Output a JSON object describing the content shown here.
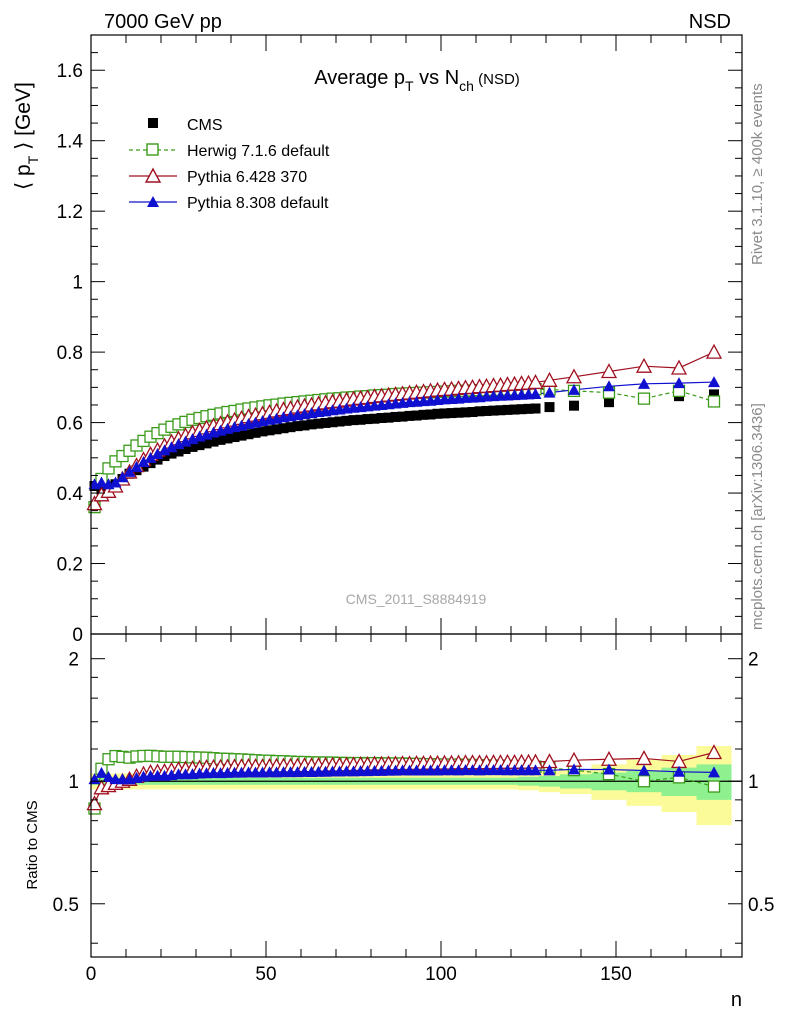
{
  "header": {
    "energy_label": "7000 GeV pp",
    "process_label": "NSD"
  },
  "side": {
    "rivet_label": "Rivet 3.1.10, ≥ 400k events",
    "source_label": "mcplots.cern.ch [arXiv:1306.3436]"
  },
  "colors": {
    "cms": "#000000",
    "herwig": "#3a9a1a",
    "pythia6": "#a01020",
    "pythia8": "#1010d0",
    "band_inner": "#8ef08e",
    "band_outer": "#fbfb9a"
  },
  "chart_data": [
    {
      "type": "scatter",
      "title_parts": {
        "main": "Average p",
        "sub_t": "T",
        "mid": " vs N",
        "sub_ch": "ch",
        "tail": " (NSD)"
      },
      "ylabel_parts": {
        "open": "⟨ p",
        "sub": "T",
        "close": " ⟩ [GeV]"
      },
      "watermark": "CMS_2011_S8884919",
      "xlim": [
        0,
        186
      ],
      "ylim": [
        0,
        1.7
      ],
      "yticks": [
        "0",
        "0.2",
        "0.4",
        "0.6",
        "0.8",
        "1",
        "1.2",
        "1.4",
        "1.6"
      ],
      "ytick_values": [
        0,
        0.2,
        0.4,
        0.6,
        0.8,
        1.0,
        1.2,
        1.4,
        1.6
      ],
      "legend": {
        "placement": "top-left",
        "entries": [
          "CMS",
          "Herwig 7.1.6 default",
          "Pythia 6.428 370",
          "Pythia 8.308 default"
        ]
      },
      "series": [
        {
          "name": "CMS",
          "x": [
            1,
            3,
            5,
            7,
            9,
            11,
            13,
            15,
            17,
            19,
            21,
            23,
            25,
            27,
            29,
            31,
            33,
            35,
            37,
            39,
            41,
            43,
            45,
            47,
            49,
            51,
            53,
            55,
            57,
            59,
            61,
            63,
            65,
            67,
            69,
            71,
            73,
            75,
            77,
            79,
            81,
            83,
            85,
            87,
            89,
            91,
            93,
            95,
            97,
            99,
            101,
            103,
            105,
            107,
            109,
            111,
            113,
            115,
            117,
            119,
            121,
            123,
            125,
            127,
            131,
            138,
            148,
            158,
            168,
            178
          ],
          "y": [
            0.42,
            0.41,
            0.415,
            0.425,
            0.44,
            0.455,
            0.465,
            0.475,
            0.485,
            0.495,
            0.505,
            0.512,
            0.518,
            0.525,
            0.531,
            0.536,
            0.541,
            0.546,
            0.551,
            0.555,
            0.559,
            0.563,
            0.567,
            0.571,
            0.575,
            0.578,
            0.581,
            0.584,
            0.587,
            0.59,
            0.592,
            0.595,
            0.597,
            0.599,
            0.601,
            0.603,
            0.605,
            0.607,
            0.608,
            0.61,
            0.611,
            0.613,
            0.614,
            0.616,
            0.617,
            0.619,
            0.62,
            0.622,
            0.623,
            0.625,
            0.626,
            0.627,
            0.628,
            0.629,
            0.63,
            0.632,
            0.633,
            0.634,
            0.635,
            0.636,
            0.637,
            0.638,
            0.639,
            0.64,
            0.644,
            0.648,
            0.658,
            0.668,
            0.675,
            0.68
          ]
        },
        {
          "name": "Herwig 7.1.6 default",
          "x": [
            1,
            3,
            5,
            7,
            9,
            11,
            13,
            15,
            17,
            19,
            21,
            23,
            25,
            27,
            29,
            31,
            33,
            35,
            37,
            39,
            41,
            43,
            45,
            47,
            49,
            51,
            53,
            55,
            57,
            59,
            61,
            63,
            65,
            67,
            69,
            71,
            73,
            75,
            77,
            79,
            81,
            83,
            85,
            87,
            89,
            91,
            93,
            95,
            97,
            99,
            101,
            103,
            105,
            107,
            109,
            111,
            113,
            115,
            117,
            119,
            121,
            123,
            125,
            127,
            131,
            138,
            148,
            158,
            168,
            178
          ],
          "y": [
            0.36,
            0.44,
            0.47,
            0.49,
            0.505,
            0.52,
            0.535,
            0.548,
            0.56,
            0.57,
            0.58,
            0.588,
            0.595,
            0.602,
            0.608,
            0.613,
            0.618,
            0.622,
            0.626,
            0.63,
            0.633,
            0.637,
            0.64,
            0.643,
            0.646,
            0.649,
            0.651,
            0.654,
            0.656,
            0.658,
            0.66,
            0.662,
            0.664,
            0.666,
            0.668,
            0.669,
            0.671,
            0.672,
            0.674,
            0.675,
            0.677,
            0.678,
            0.679,
            0.681,
            0.682,
            0.683,
            0.684,
            0.685,
            0.686,
            0.687,
            0.688,
            0.689,
            0.69,
            0.69,
            0.691,
            0.692,
            0.692,
            0.693,
            0.693,
            0.694,
            0.694,
            0.694,
            0.695,
            0.695,
            0.694,
            0.69,
            0.685,
            0.668,
            0.69,
            0.66
          ]
        },
        {
          "name": "Pythia 6.428 370",
          "x": [
            1,
            3,
            5,
            7,
            9,
            11,
            13,
            15,
            17,
            19,
            21,
            23,
            25,
            27,
            29,
            31,
            33,
            35,
            37,
            39,
            41,
            43,
            45,
            47,
            49,
            51,
            53,
            55,
            57,
            59,
            61,
            63,
            65,
            67,
            69,
            71,
            73,
            75,
            77,
            79,
            81,
            83,
            85,
            87,
            89,
            91,
            93,
            95,
            97,
            99,
            101,
            103,
            105,
            107,
            109,
            111,
            113,
            115,
            117,
            119,
            121,
            123,
            125,
            127,
            131,
            138,
            148,
            158,
            168,
            178
          ],
          "y": [
            0.37,
            0.395,
            0.405,
            0.42,
            0.44,
            0.46,
            0.478,
            0.495,
            0.51,
            0.522,
            0.534,
            0.545,
            0.554,
            0.563,
            0.571,
            0.578,
            0.585,
            0.591,
            0.597,
            0.602,
            0.607,
            0.612,
            0.617,
            0.621,
            0.625,
            0.629,
            0.633,
            0.637,
            0.64,
            0.644,
            0.647,
            0.65,
            0.653,
            0.656,
            0.659,
            0.661,
            0.664,
            0.667,
            0.669,
            0.671,
            0.674,
            0.676,
            0.678,
            0.68,
            0.682,
            0.684,
            0.686,
            0.688,
            0.69,
            0.692,
            0.694,
            0.695,
            0.697,
            0.699,
            0.7,
            0.702,
            0.703,
            0.705,
            0.706,
            0.708,
            0.709,
            0.711,
            0.712,
            0.714,
            0.72,
            0.73,
            0.745,
            0.76,
            0.755,
            0.8
          ]
        },
        {
          "name": "Pythia 8.308 default",
          "x": [
            1,
            3,
            5,
            7,
            9,
            11,
            13,
            15,
            17,
            19,
            21,
            23,
            25,
            27,
            29,
            31,
            33,
            35,
            37,
            39,
            41,
            43,
            45,
            47,
            49,
            51,
            53,
            55,
            57,
            59,
            61,
            63,
            65,
            67,
            69,
            71,
            73,
            75,
            77,
            79,
            81,
            83,
            85,
            87,
            89,
            91,
            93,
            95,
            97,
            99,
            101,
            103,
            105,
            107,
            109,
            111,
            113,
            115,
            117,
            119,
            121,
            123,
            125,
            127,
            131,
            138,
            148,
            158,
            168,
            178
          ],
          "y": [
            0.425,
            0.43,
            0.425,
            0.43,
            0.445,
            0.46,
            0.474,
            0.488,
            0.5,
            0.511,
            0.521,
            0.53,
            0.539,
            0.546,
            0.553,
            0.56,
            0.566,
            0.572,
            0.577,
            0.582,
            0.587,
            0.591,
            0.596,
            0.6,
            0.604,
            0.608,
            0.611,
            0.615,
            0.618,
            0.621,
            0.624,
            0.627,
            0.63,
            0.632,
            0.635,
            0.637,
            0.64,
            0.642,
            0.644,
            0.646,
            0.648,
            0.65,
            0.652,
            0.654,
            0.656,
            0.658,
            0.659,
            0.661,
            0.662,
            0.664,
            0.666,
            0.667,
            0.668,
            0.67,
            0.671,
            0.672,
            0.674,
            0.675,
            0.676,
            0.677,
            0.678,
            0.679,
            0.68,
            0.681,
            0.685,
            0.693,
            0.703,
            0.71,
            0.712,
            0.715
          ]
        }
      ]
    },
    {
      "type": "scatter",
      "ylabel": "Ratio to CMS",
      "xlabel": "n",
      "xlim": [
        0,
        186
      ],
      "ylim": [
        0.37,
        2.3
      ],
      "y_scale": "log",
      "xticks": [
        "0",
        "50",
        "100",
        "150"
      ],
      "xtick_values": [
        0,
        50,
        100,
        150
      ],
      "yticks": [
        "0.5",
        "1",
        "2"
      ],
      "ytick_values": [
        0.5,
        1,
        2
      ],
      "band": {
        "x_edges": [
          0,
          2,
          4,
          6,
          8,
          10,
          12,
          14,
          16,
          18,
          20,
          22,
          24,
          26,
          28,
          30,
          32,
          34,
          36,
          38,
          40,
          42,
          44,
          46,
          48,
          50,
          52,
          54,
          56,
          58,
          60,
          62,
          64,
          66,
          68,
          70,
          72,
          74,
          76,
          78,
          80,
          82,
          84,
          86,
          88,
          90,
          92,
          94,
          96,
          98,
          100,
          102,
          104,
          106,
          108,
          110,
          112,
          114,
          116,
          118,
          120,
          122,
          124,
          126,
          128,
          134,
          143,
          153,
          163,
          173,
          183
        ],
        "inner_half_width": [
          0.02,
          0.02,
          0.02,
          0.02,
          0.02,
          0.02,
          0.02,
          0.02,
          0.02,
          0.02,
          0.02,
          0.02,
          0.02,
          0.02,
          0.02,
          0.02,
          0.02,
          0.02,
          0.02,
          0.02,
          0.02,
          0.02,
          0.02,
          0.02,
          0.02,
          0.02,
          0.02,
          0.02,
          0.02,
          0.02,
          0.02,
          0.02,
          0.02,
          0.02,
          0.02,
          0.02,
          0.02,
          0.02,
          0.02,
          0.02,
          0.02,
          0.02,
          0.02,
          0.02,
          0.02,
          0.02,
          0.02,
          0.02,
          0.02,
          0.02,
          0.02,
          0.02,
          0.02,
          0.02,
          0.02,
          0.02,
          0.02,
          0.02,
          0.02,
          0.02,
          0.02,
          0.025,
          0.025,
          0.025,
          0.03,
          0.04,
          0.05,
          0.06,
          0.08,
          0.1
        ],
        "outer_half_width": [
          0.045,
          0.045,
          0.045,
          0.045,
          0.045,
          0.045,
          0.045,
          0.045,
          0.045,
          0.045,
          0.045,
          0.045,
          0.045,
          0.045,
          0.045,
          0.045,
          0.045,
          0.045,
          0.045,
          0.045,
          0.045,
          0.045,
          0.045,
          0.045,
          0.045,
          0.045,
          0.045,
          0.045,
          0.045,
          0.045,
          0.045,
          0.045,
          0.045,
          0.045,
          0.045,
          0.045,
          0.045,
          0.045,
          0.045,
          0.045,
          0.045,
          0.045,
          0.045,
          0.045,
          0.045,
          0.045,
          0.045,
          0.045,
          0.045,
          0.045,
          0.045,
          0.045,
          0.045,
          0.045,
          0.045,
          0.045,
          0.045,
          0.045,
          0.045,
          0.045,
          0.045,
          0.05,
          0.05,
          0.05,
          0.06,
          0.07,
          0.1,
          0.13,
          0.16,
          0.22
        ]
      }
    }
  ]
}
